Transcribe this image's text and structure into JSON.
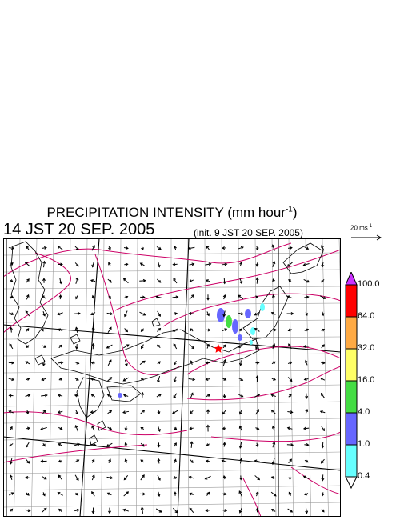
{
  "title": {
    "main": "PRECIPITATION INTENSITY (mm hour",
    "unit_sup": "-1",
    "close": ")"
  },
  "timestamp": "14 JST 20 SEP. 2005",
  "init_time": "(init. 9 JST 20 SEP. 2005)",
  "vector_reference": {
    "value": "20 ms",
    "sup": "-1"
  },
  "colorbar": {
    "levels": [
      "0.4",
      "1.0",
      "4.0",
      "16.0",
      "32.0",
      "64.0",
      "100.0"
    ],
    "colors": [
      "#66ffff",
      "#6666ff",
      "#44dd44",
      "#ffff66",
      "#ffaa44",
      "#ff0000"
    ],
    "over_color": "#cc33ff",
    "under_color": "#ffffff"
  },
  "colors": {
    "coast": "#000000",
    "grid": "#9a9a9a",
    "contour": "#cc0066",
    "marker": "#ff0000"
  }
}
